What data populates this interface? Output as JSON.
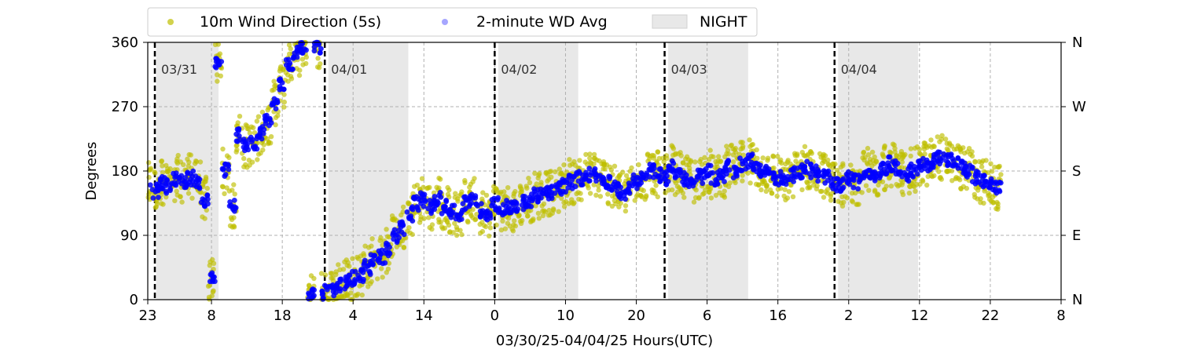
{
  "chart_data": {
    "type": "scatter",
    "xlabel": "03/30/25-04/04/25  Hours(UTC)",
    "ylabel": "Degrees",
    "ylim": [
      0,
      360
    ],
    "xlim_hours_from_2300_0330": [
      0,
      129
    ],
    "grid": true,
    "legend_position": "top",
    "yticks": [
      0,
      90,
      180,
      270,
      360
    ],
    "right_yticks": [
      {
        "value": 0,
        "label": "N"
      },
      {
        "value": 90,
        "label": "E"
      },
      {
        "value": 180,
        "label": "S"
      },
      {
        "value": 270,
        "label": "W"
      },
      {
        "value": 360,
        "label": "N"
      }
    ],
    "xticks": [
      {
        "hour": 0,
        "label": "23"
      },
      {
        "hour": 9,
        "label": "8"
      },
      {
        "hour": 19,
        "label": "18"
      },
      {
        "hour": 29,
        "label": "4"
      },
      {
        "hour": 39,
        "label": "14"
      },
      {
        "hour": 49,
        "label": "0"
      },
      {
        "hour": 59,
        "label": "10"
      },
      {
        "hour": 69,
        "label": "20"
      },
      {
        "hour": 79,
        "label": "6"
      },
      {
        "hour": 89,
        "label": "16"
      },
      {
        "hour": 99,
        "label": "2"
      },
      {
        "hour": 109,
        "label": "12"
      },
      {
        "hour": 119,
        "label": "22"
      },
      {
        "hour": 129,
        "label": "8"
      }
    ],
    "day_markers": [
      {
        "hour": 1,
        "label": "03/31"
      },
      {
        "hour": 25,
        "label": "04/01"
      },
      {
        "hour": 49,
        "label": "04/02"
      },
      {
        "hour": 73,
        "label": "04/03"
      },
      {
        "hour": 97,
        "label": "04/04"
      }
    ],
    "night_periods": [
      [
        1.2,
        10.0
      ],
      [
        25.5,
        36.8
      ],
      [
        49.5,
        60.8
      ],
      [
        73.5,
        84.8
      ],
      [
        97.5,
        108.8
      ]
    ],
    "series": [
      {
        "name": "10m Wind Direction (5s)",
        "color": "#bfbf00",
        "x_hours": [
          0,
          1,
          2,
          3,
          4,
          5,
          6,
          7,
          8,
          9,
          10,
          11,
          12,
          13,
          14,
          15,
          16,
          17,
          18,
          19,
          20,
          21,
          22,
          23,
          24,
          25,
          26,
          27,
          28,
          29,
          30,
          31,
          32,
          33,
          34,
          35,
          36,
          37,
          38,
          39,
          40,
          41,
          42,
          43,
          44,
          45,
          46,
          47,
          48,
          49,
          50,
          51,
          52,
          53,
          54,
          55,
          56,
          57,
          58,
          59,
          60,
          61,
          62,
          63,
          64,
          65,
          66,
          67,
          68,
          69,
          70,
          71,
          72,
          73,
          74,
          75,
          76,
          77,
          78,
          79,
          80,
          81,
          82,
          83,
          84,
          85,
          86,
          87,
          88,
          89,
          90,
          91,
          92,
          93,
          94,
          95,
          96,
          97,
          98,
          99,
          100,
          101,
          102,
          103,
          104,
          105,
          106,
          107,
          108,
          109,
          110,
          111,
          112,
          113,
          114,
          115,
          116,
          117,
          118,
          119,
          120
        ],
        "y_degrees": [
          160,
          155,
          165,
          160,
          170,
          168,
          172,
          165,
          140,
          30,
          330,
          180,
          130,
          230,
          215,
          220,
          235,
          250,
          275,
          300,
          330,
          345,
          355,
          5,
          355,
          10,
          15,
          20,
          25,
          30,
          35,
          45,
          55,
          60,
          70,
          90,
          100,
          120,
          135,
          140,
          130,
          140,
          130,
          125,
          120,
          135,
          140,
          125,
          120,
          135,
          125,
          130,
          128,
          135,
          140,
          145,
          148,
          150,
          155,
          160,
          165,
          170,
          175,
          175,
          170,
          165,
          155,
          150,
          155,
          165,
          170,
          180,
          175,
          170,
          185,
          175,
          168,
          165,
          172,
          180,
          170,
          175,
          185,
          180,
          190,
          195,
          185,
          180,
          175,
          170,
          165,
          175,
          180,
          185,
          180,
          175,
          170,
          160,
          160,
          170,
          165,
          175,
          180,
          175,
          185,
          190,
          185,
          175,
          180,
          185,
          190,
          195,
          200,
          195,
          190,
          185,
          180,
          170,
          165,
          160,
          155
        ]
      },
      {
        "name": "2-minute WD Avg",
        "color": "#0000ff",
        "x_hours": [
          0,
          1,
          2,
          3,
          4,
          5,
          6,
          7,
          8,
          9,
          10,
          11,
          12,
          13,
          14,
          15,
          16,
          17,
          18,
          19,
          20,
          21,
          22,
          23,
          24,
          25,
          26,
          27,
          28,
          29,
          30,
          31,
          32,
          33,
          34,
          35,
          36,
          37,
          38,
          39,
          40,
          41,
          42,
          43,
          44,
          45,
          46,
          47,
          48,
          49,
          50,
          51,
          52,
          53,
          54,
          55,
          56,
          57,
          58,
          59,
          60,
          61,
          62,
          63,
          64,
          65,
          66,
          67,
          68,
          69,
          70,
          71,
          72,
          73,
          74,
          75,
          76,
          77,
          78,
          79,
          80,
          81,
          82,
          83,
          84,
          85,
          86,
          87,
          88,
          89,
          90,
          91,
          92,
          93,
          94,
          95,
          96,
          97,
          98,
          99,
          100,
          101,
          102,
          103,
          104,
          105,
          106,
          107,
          108,
          109,
          110,
          111,
          112,
          113,
          114,
          115,
          116,
          117,
          118,
          119,
          120
        ],
        "y_degrees": [
          160,
          152,
          162,
          158,
          168,
          166,
          170,
          164,
          140,
          30,
          330,
          180,
          130,
          230,
          215,
          220,
          235,
          250,
          275,
          300,
          330,
          345,
          355,
          5,
          355,
          10,
          15,
          20,
          25,
          30,
          35,
          45,
          55,
          60,
          70,
          90,
          100,
          120,
          135,
          140,
          130,
          140,
          130,
          125,
          120,
          135,
          140,
          125,
          120,
          135,
          125,
          130,
          128,
          135,
          140,
          145,
          148,
          150,
          155,
          160,
          165,
          170,
          175,
          175,
          170,
          165,
          155,
          150,
          155,
          165,
          170,
          180,
          175,
          170,
          185,
          175,
          168,
          165,
          172,
          180,
          170,
          175,
          185,
          180,
          190,
          195,
          185,
          180,
          175,
          170,
          165,
          175,
          180,
          185,
          180,
          175,
          170,
          160,
          160,
          170,
          165,
          175,
          180,
          175,
          185,
          190,
          185,
          175,
          180,
          185,
          190,
          195,
          200,
          195,
          190,
          185,
          180,
          170,
          165,
          160,
          155
        ]
      }
    ],
    "legend": [
      {
        "label": "10m Wind Direction (5s)",
        "color": "#bfbf00",
        "marker": "dot"
      },
      {
        "label": "2-minute WD Avg",
        "color": "#0000ff",
        "marker": "dot"
      },
      {
        "label": "NIGHT",
        "color": "#e8e8e8",
        "marker": "patch"
      }
    ]
  }
}
